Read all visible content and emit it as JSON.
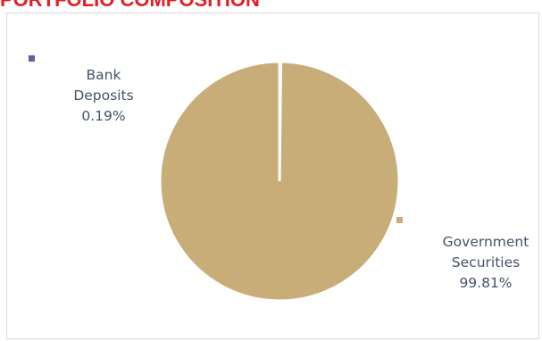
{
  "title": "PORTFOLIO COMPOSITION",
  "chart_data": {
    "type": "pie",
    "title": "PORTFOLIO COMPOSITION",
    "categories": [
      "Bank Deposits",
      "Government Securities"
    ],
    "values": [
      0.19,
      99.81
    ],
    "unit": "%",
    "colors": [
      "#6a5a9e",
      "#c9ad78"
    ],
    "value_labels": [
      "0.19%",
      "99.81%"
    ],
    "slice_separator_color": "#ffffff",
    "labels_outside": true
  }
}
